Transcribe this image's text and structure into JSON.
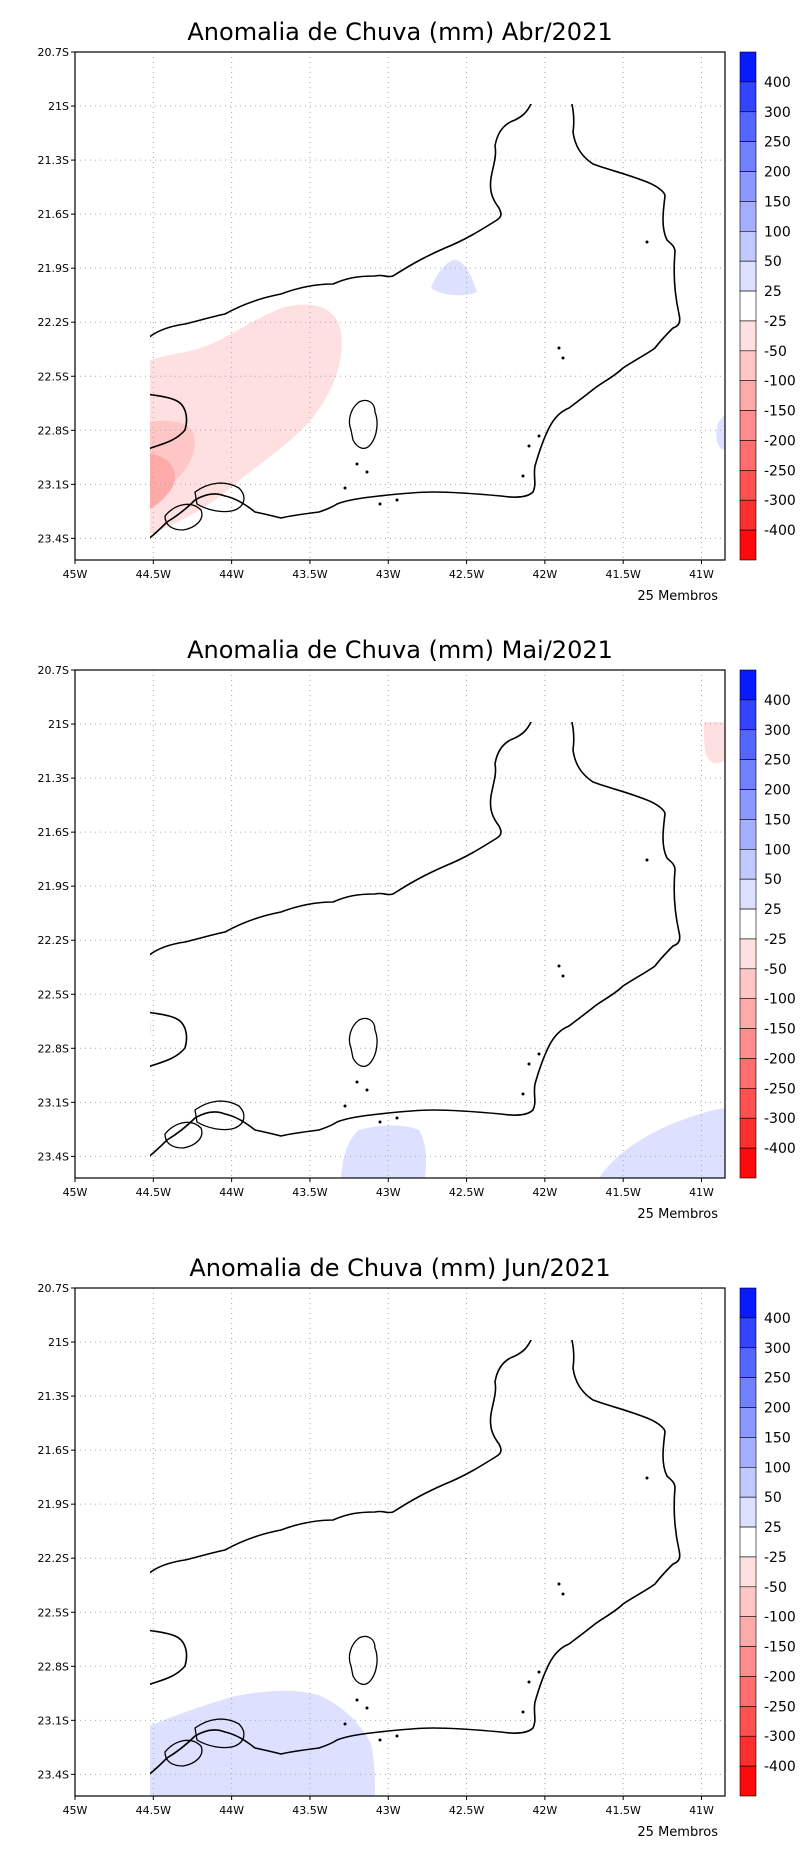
{
  "members_label": "25 Membros",
  "x_ticks": [
    "45W",
    "44.5W",
    "44W",
    "43.5W",
    "43W",
    "42.5W",
    "42W",
    "41.5W",
    "41W"
  ],
  "y_ticks": [
    "20.7S",
    "21S",
    "21.3S",
    "21.6S",
    "21.9S",
    "22.2S",
    "22.5S",
    "22.8S",
    "23.1S",
    "23.4S"
  ],
  "colorbar": {
    "labels": [
      "400",
      "300",
      "250",
      "200",
      "150",
      "100",
      "50",
      "25",
      "-25",
      "-50",
      "-100",
      "-150",
      "-200",
      "-250",
      "-300",
      "-400"
    ],
    "colors": [
      "#0a1aff",
      "#3344ff",
      "#5565ff",
      "#7080ff",
      "#8a98ff",
      "#a4b0ff",
      "#c2c9ff",
      "#dde1ff",
      "#ffffff",
      "#ffe0e0",
      "#ffc6c6",
      "#ffaaaa",
      "#ff8c8c",
      "#ff6e6e",
      "#ff5050",
      "#ff2e2e",
      "#ff0a0a"
    ]
  },
  "panels": [
    {
      "title": "Anomalia de Chuva (mm) Abr/2021"
    },
    {
      "title": "Anomalia de Chuva (mm) Mai/2021"
    },
    {
      "title": "Anomalia de Chuva (mm) Jun/2021"
    }
  ]
}
